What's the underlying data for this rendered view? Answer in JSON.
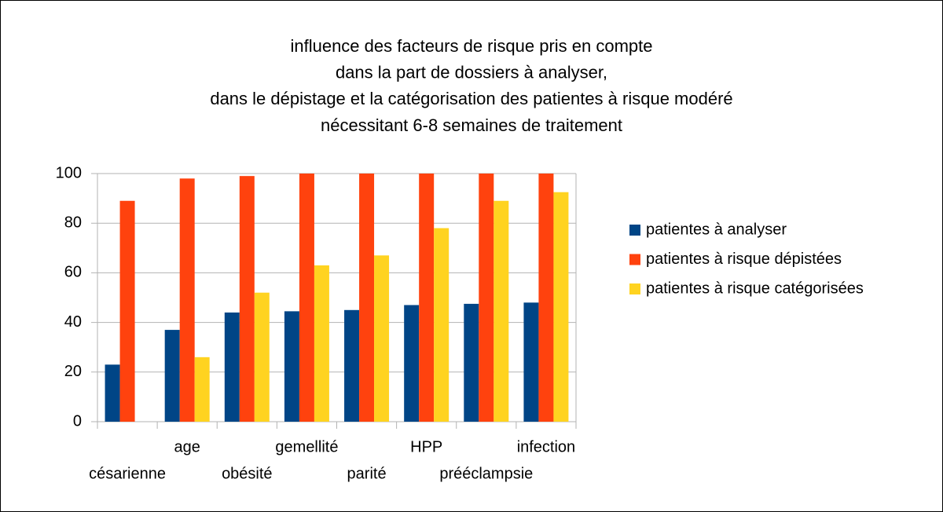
{
  "chart_data": {
    "type": "bar",
    "title": [
      "influence des facteurs de risque pris en compte",
      "dans la part de dossiers à analyser,",
      "dans le dépistage et la catégorisation des patientes à risque modéré",
      "nécessitant 6-8 semaines de traitement"
    ],
    "categories": [
      "césarienne",
      "age",
      "obésité",
      "gemellité",
      "parité",
      "HPP",
      "prééclampsie",
      "infection"
    ],
    "series": [
      {
        "name": "patientes à analyser",
        "color": "#004586",
        "values": [
          23,
          37,
          44,
          44.5,
          45,
          47,
          47.5,
          48
        ]
      },
      {
        "name": "patientes à risque dépistées",
        "color": "#ff420e",
        "values": [
          89,
          98,
          99,
          100,
          100,
          100,
          100,
          100
        ]
      },
      {
        "name": "patientes à risque catégorisées",
        "color": "#ffd320",
        "values": [
          0,
          26,
          52,
          63,
          67,
          78,
          89,
          92.5
        ]
      }
    ],
    "ylim": [
      0,
      100
    ],
    "yticks": [
      0,
      20,
      40,
      60,
      80,
      100
    ],
    "grid": true,
    "legend": "right"
  }
}
